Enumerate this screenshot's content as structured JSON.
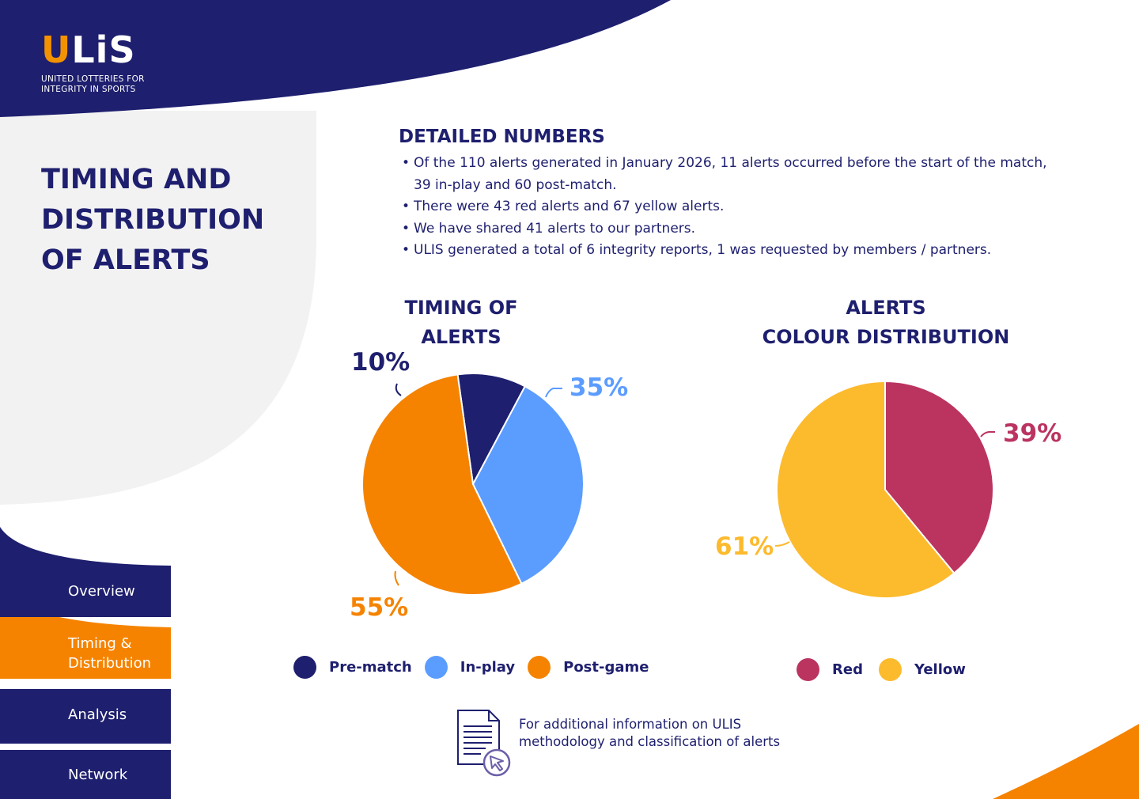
{
  "brand": {
    "logo_text_a": "U",
    "logo_text_b": "LiS",
    "tagline": "UNITED LOTTERIES FOR INTEGRITY IN SPORTS"
  },
  "page_title": "TIMING AND DISTRIBUTION OF ALERTS",
  "details": {
    "title": "DETAILED NUMBERS",
    "bullets": [
      "Of the 110 alerts generated in January 2026, 11 alerts occurred before the start of the match, 39 in-play and 60 post-match.",
      "There were 43 red alerts and 67 yellow alerts.",
      "We have shared 41 alerts to our partners.",
      "ULIS generated a total of 6 integrity reports, 1 was requested by members / partners."
    ]
  },
  "chart_data": [
    {
      "type": "pie",
      "title": "TIMING OF ALERTS",
      "categories": [
        "Pre-match",
        "In-play",
        "Post-game"
      ],
      "values": [
        10,
        35,
        55
      ],
      "labels": [
        "10%",
        "35%",
        "55%"
      ],
      "colors": [
        "#1e1f6e",
        "#5b9cff",
        "#f58300"
      ],
      "legend_position": "bottom"
    },
    {
      "type": "pie",
      "title": "ALERTS COLOUR DISTRIBUTION",
      "categories": [
        "Red",
        "Yellow"
      ],
      "values": [
        39,
        61
      ],
      "labels": [
        "39%",
        "61%"
      ],
      "colors": [
        "#bb3460",
        "#fcba2d"
      ],
      "legend_position": "bottom"
    }
  ],
  "chart_titles": {
    "timing": [
      "TIMING OF",
      "ALERTS"
    ],
    "colour": [
      "ALERTS",
      "COLOUR DISTRIBUTION"
    ]
  },
  "nav": {
    "items": [
      "Overview",
      "Timing & Distribution",
      "Analysis",
      "Network"
    ],
    "active_index": 1
  },
  "footer": {
    "icon": "document-cursor-icon",
    "text": "For additional information on ULIS methodology and classification of alerts"
  },
  "colors": {
    "navy": "#1e1f6e",
    "orange": "#f58300",
    "light_grey": "#f2f2f2",
    "blue": "#5b9cff",
    "red": "#bb3460",
    "yellow": "#fcba2d"
  }
}
